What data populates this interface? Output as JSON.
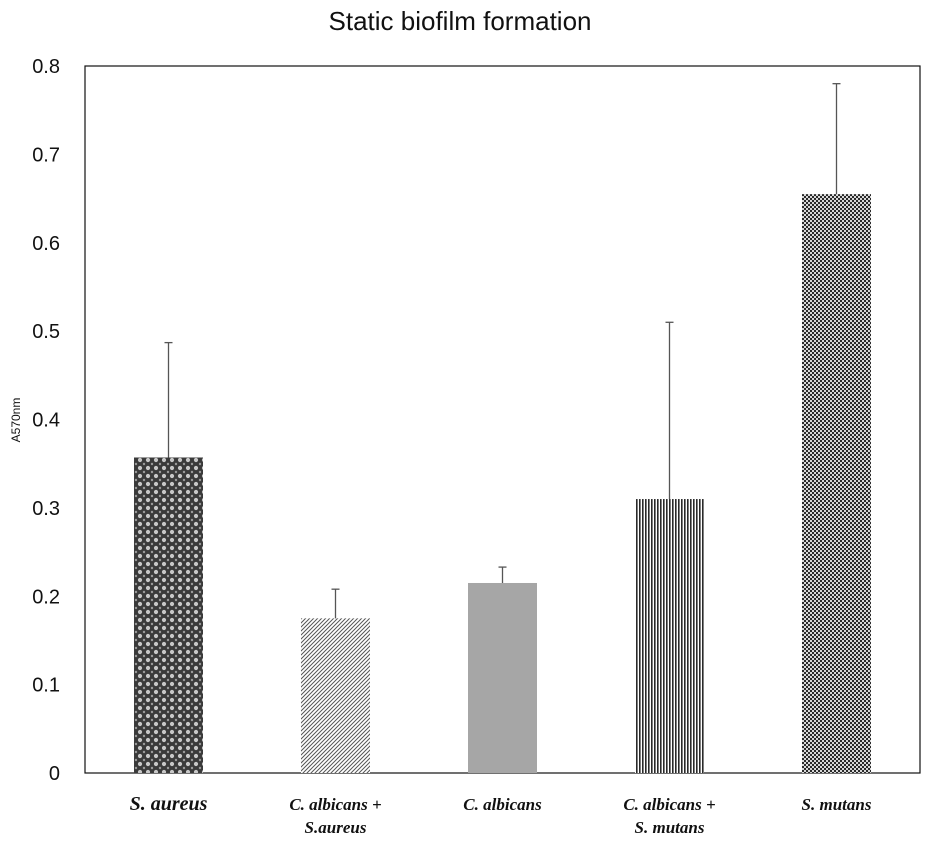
{
  "chart_data": {
    "type": "bar",
    "title": "Static biofilm formation",
    "xlabel": "",
    "ylabel": "A570nm",
    "ylim": [
      0,
      0.8
    ],
    "yticks": [
      "0",
      "0.1",
      "0.2",
      "0.3",
      "0.4",
      "0.5",
      "0.6",
      "0.7",
      "0.8"
    ],
    "grid": false,
    "legend": "none",
    "categories": [
      [
        "S. aureus"
      ],
      [
        "C. albicans +",
        "S.aureus"
      ],
      [
        "C. albicans"
      ],
      [
        "C. albicans +",
        "S. mutans"
      ],
      [
        "S. mutans"
      ]
    ],
    "values": [
      0.357,
      0.175,
      0.215,
      0.31,
      0.655
    ],
    "error_upper": [
      0.13,
      0.033,
      0.018,
      0.2,
      0.125
    ],
    "bar_styles": [
      "fine-crosshatch",
      "diagonal-hatch",
      "solid-gray",
      "vertical-lines",
      "checker"
    ],
    "colors": {
      "bar_dark": "#333333",
      "bar_gray": "#a6a6a6",
      "axis": "#111111",
      "error_bar": "#555555"
    }
  }
}
